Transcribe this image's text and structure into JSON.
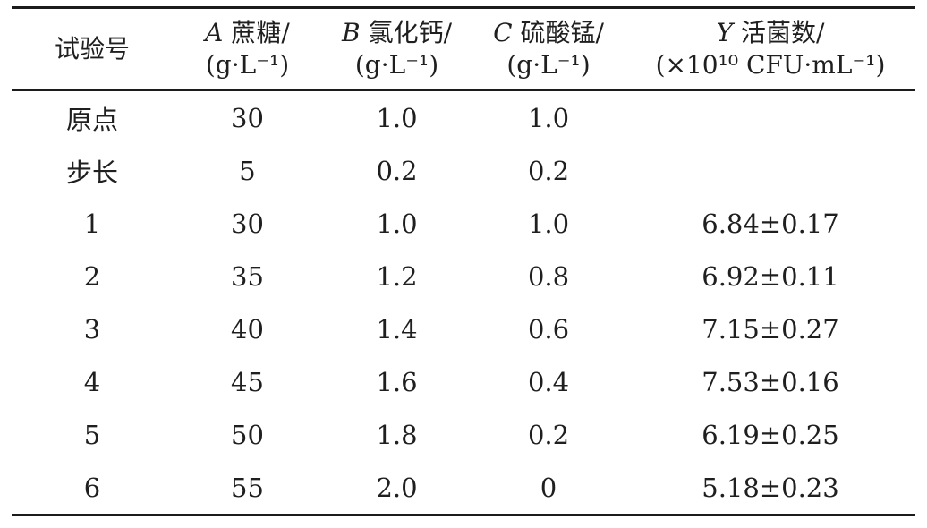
{
  "table": {
    "title_semantics": "steepest-ascent experiment design and results",
    "columns": [
      {
        "variable": "",
        "label": "试验号",
        "unit": ""
      },
      {
        "variable": "A",
        "label": "蔗糖/",
        "unit": "(g·L⁻¹)"
      },
      {
        "variable": "B",
        "label": "氯化钙/",
        "unit": "(g·L⁻¹)"
      },
      {
        "variable": "C",
        "label": "硫酸锰/",
        "unit": "(g·L⁻¹)"
      },
      {
        "variable": "Y",
        "label": "活菌数/",
        "unit": "(×10¹⁰ CFU·mL⁻¹)"
      }
    ],
    "rows": [
      {
        "id": "原点",
        "a": "30",
        "b": "1.0",
        "c": "1.0",
        "y": ""
      },
      {
        "id": "步长",
        "a": "5",
        "b": "0.2",
        "c": "0.2",
        "y": ""
      },
      {
        "id": "1",
        "a": "30",
        "b": "1.0",
        "c": "1.0",
        "y": "6.84±0.17"
      },
      {
        "id": "2",
        "a": "35",
        "b": "1.2",
        "c": "0.8",
        "y": "6.92±0.11"
      },
      {
        "id": "3",
        "a": "40",
        "b": "1.4",
        "c": "0.6",
        "y": "7.15±0.27"
      },
      {
        "id": "4",
        "a": "45",
        "b": "1.6",
        "c": "0.4",
        "y": "7.53±0.16"
      },
      {
        "id": "5",
        "a": "50",
        "b": "1.8",
        "c": "0.2",
        "y": "6.19±0.25"
      },
      {
        "id": "6",
        "a": "55",
        "b": "2.0",
        "c": "0",
        "y": "5.18±0.23"
      }
    ],
    "colors": {
      "text": "#1f1f1f",
      "rule": "#1c1c1c",
      "background": "#ffffff"
    }
  }
}
